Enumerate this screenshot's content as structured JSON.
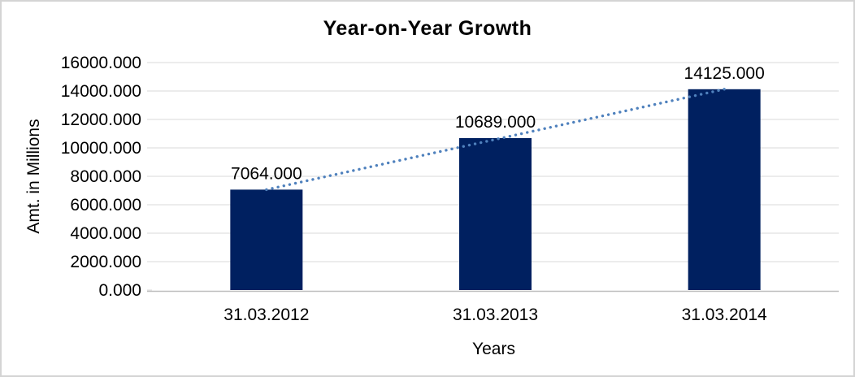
{
  "chart_data": {
    "type": "bar",
    "title": "Year-on-Year Growth",
    "xlabel": "Years",
    "ylabel": "Amt. in Millions",
    "categories": [
      "31.03.2012",
      "31.03.2013",
      "31.03.2014"
    ],
    "values": [
      7064,
      10689,
      14125
    ],
    "data_labels": [
      "7064.000",
      "10689.000",
      "14125.000"
    ],
    "y_tick_labels": [
      "0.000",
      "2000.000",
      "4000.000",
      "6000.000",
      "8000.000",
      "10000.000",
      "12000.000",
      "14000.000",
      "16000.000"
    ],
    "ylim": [
      0,
      16000
    ],
    "y_tick_step": 2000,
    "grid": true,
    "legend_position": "none",
    "trendline": {
      "type": "linear",
      "style": "dotted"
    },
    "colors": {
      "bar": "#002060",
      "trendline": "#4F81BD",
      "gridline": "#D9D9D9",
      "axis_line": "#BDBDBD",
      "text": "#000000",
      "frame_border": "#D4D4D4",
      "background": "#FFFFFF"
    }
  }
}
